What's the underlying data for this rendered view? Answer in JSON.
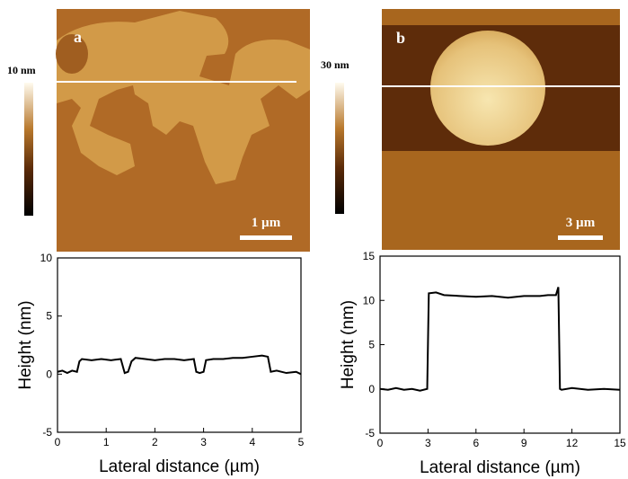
{
  "images": [
    {
      "label": "a",
      "colorbar_max": "10 nm",
      "scale_bar": "1 µm"
    },
    {
      "label": "b",
      "colorbar_max": "30 nm",
      "scale_bar": "3 µm"
    }
  ],
  "chart_data": [
    {
      "type": "line",
      "xlabel": "Lateral distance (µm)",
      "ylabel": "Height (nm)",
      "color": "#000000",
      "x": [
        0,
        0.1,
        0.2,
        0.3,
        0.4,
        0.45,
        0.5,
        0.7,
        0.9,
        1.1,
        1.3,
        1.38,
        1.45,
        1.52,
        1.6,
        1.8,
        2.0,
        2.2,
        2.4,
        2.6,
        2.8,
        2.85,
        2.92,
        3.0,
        3.05,
        3.2,
        3.4,
        3.6,
        3.8,
        4.0,
        4.2,
        4.32,
        4.38,
        4.5,
        4.7,
        4.9,
        5.0
      ],
      "values": [
        0.2,
        0.3,
        0.1,
        0.3,
        0.2,
        1.1,
        1.3,
        1.2,
        1.3,
        1.2,
        1.3,
        0.1,
        0.2,
        1.1,
        1.4,
        1.3,
        1.2,
        1.3,
        1.3,
        1.2,
        1.3,
        0.2,
        0.1,
        0.2,
        1.2,
        1.3,
        1.3,
        1.4,
        1.4,
        1.5,
        1.6,
        1.5,
        0.2,
        0.3,
        0.1,
        0.2,
        0.0
      ],
      "xlim": [
        0,
        5
      ],
      "xticks": [
        0,
        1,
        2,
        3,
        4,
        5
      ],
      "ylim": [
        -5,
        10
      ],
      "yticks": [
        -5,
        0,
        5,
        10
      ]
    },
    {
      "type": "line",
      "xlabel": "Lateral distance (µm)",
      "ylabel": "Height (nm)",
      "color": "#000000",
      "x": [
        0,
        0.5,
        1,
        1.5,
        2,
        2.5,
        2.95,
        3.05,
        3.5,
        4,
        5,
        6,
        7,
        8,
        9,
        10,
        10.5,
        11,
        11.15,
        11.25,
        11.35,
        12,
        13,
        14,
        15
      ],
      "values": [
        0,
        -0.1,
        0.1,
        -0.1,
        0,
        -0.2,
        0,
        10.8,
        10.9,
        10.6,
        10.5,
        10.4,
        10.5,
        10.3,
        10.5,
        10.5,
        10.6,
        10.6,
        11.5,
        0,
        -0.1,
        0.1,
        -0.1,
        0,
        -0.1
      ],
      "xlim": [
        0,
        15
      ],
      "xticks": [
        0,
        3,
        6,
        9,
        12,
        15
      ],
      "ylim": [
        -5,
        15
      ],
      "yticks": [
        -5,
        0,
        5,
        10,
        15
      ]
    }
  ]
}
